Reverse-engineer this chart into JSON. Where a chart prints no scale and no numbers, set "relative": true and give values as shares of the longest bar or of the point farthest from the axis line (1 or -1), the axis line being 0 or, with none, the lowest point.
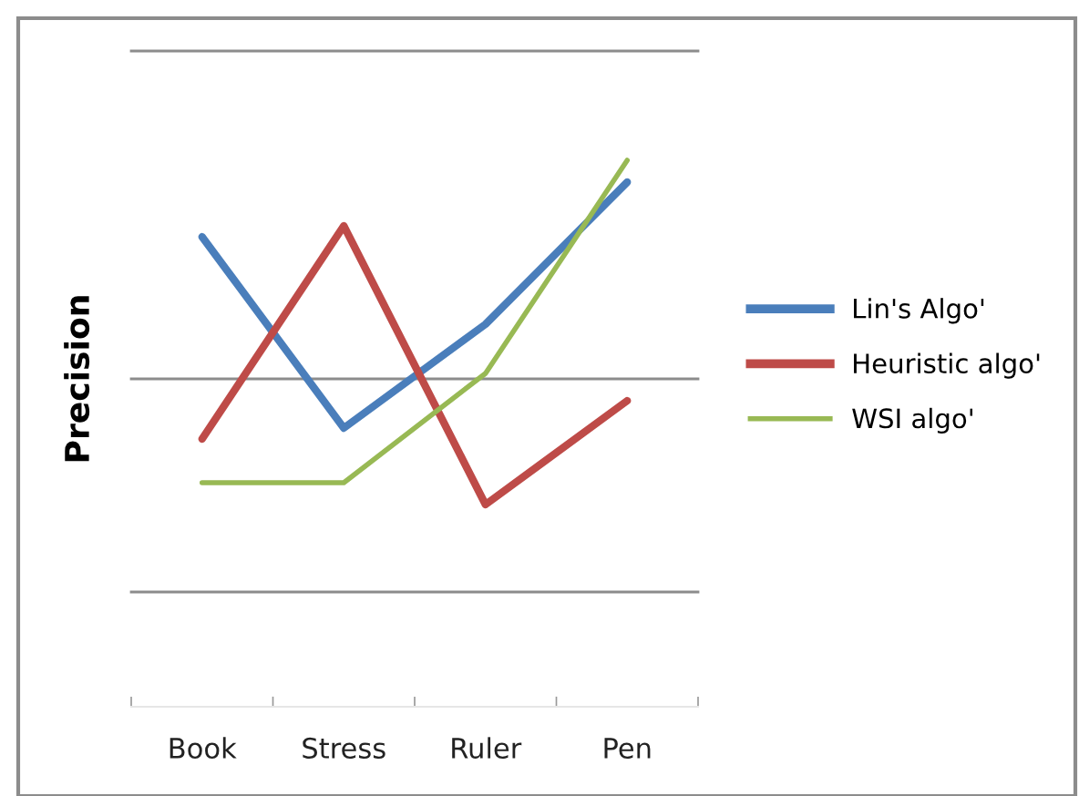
{
  "chart_data": {
    "type": "line",
    "ylabel": "Precision",
    "relative": true,
    "legend": "right",
    "ref_lines": [
      {
        "axis": "y",
        "value": 0.21,
        "color": "#8c8c8c"
      },
      {
        "axis": "y",
        "value": 0.6,
        "color": "#8c8c8c"
      },
      {
        "axis": "y",
        "value": 1.2,
        "color": "#8c8c8c"
      }
    ],
    "marker": "none",
    "line_style": "solid",
    "categories": [
      "Book",
      "Stress",
      "Ruler",
      "Pen"
    ],
    "series": [
      {
        "name": "Lin's Algo'",
        "color": "#4a7ebb",
        "values": [
          0.86,
          0.51,
          0.7,
          0.96
        ]
      },
      {
        "name": "Heuristic algo'",
        "color": "#be4b48",
        "values": [
          0.49,
          0.88,
          0.37,
          0.56
        ]
      },
      {
        "name": "WSI algo'",
        "color": "#98b954",
        "values": [
          0.41,
          0.41,
          0.61,
          1.0
        ]
      }
    ]
  }
}
